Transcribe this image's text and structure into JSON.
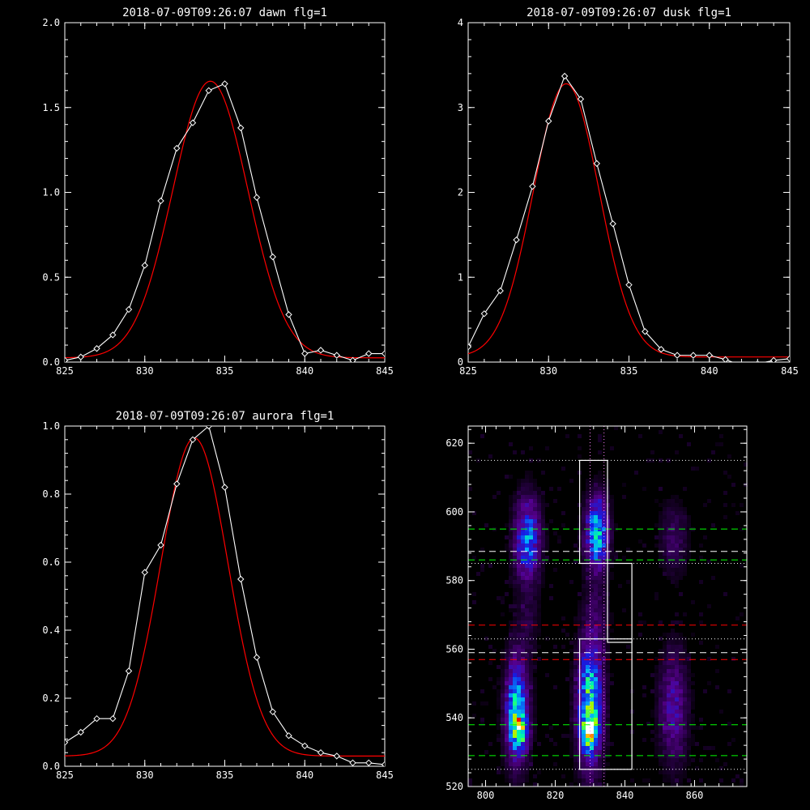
{
  "chart_data": [
    {
      "type": "line",
      "title": "2018-07-09T09:26:07 dawn flg=1",
      "xlim": [
        825,
        845
      ],
      "ylim": [
        0,
        2.0
      ],
      "xticks": [
        825,
        830,
        835,
        840,
        845
      ],
      "yticks": [
        0.0,
        0.5,
        1.0,
        1.5,
        2.0
      ],
      "ytick_labels": [
        "0.0",
        "0.5",
        "1.0",
        "1.5",
        "2.0"
      ],
      "series": [
        {
          "role": "data",
          "color": "#ffffff",
          "markers": "diamond",
          "x": [
            825,
            826,
            827,
            828,
            829,
            830,
            831,
            832,
            833,
            834,
            835,
            836,
            837,
            838,
            839,
            840,
            841,
            842,
            843,
            844,
            845
          ],
          "y": [
            0.01,
            0.03,
            0.08,
            0.16,
            0.31,
            0.57,
            0.95,
            1.26,
            1.41,
            1.6,
            1.64,
            1.38,
            0.97,
            0.62,
            0.28,
            0.05,
            0.07,
            0.04,
            0.01,
            0.05,
            0.05
          ]
        },
        {
          "role": "fit",
          "color": "#ff0000",
          "gauss": {
            "a": 1.63,
            "mu": 834.1,
            "sigma": 2.35,
            "c": 0.025
          }
        }
      ]
    },
    {
      "type": "line",
      "title": "2018-07-09T09:26:07 dusk flg=1",
      "xlim": [
        825,
        845
      ],
      "ylim": [
        0,
        4
      ],
      "xticks": [
        825,
        830,
        835,
        840,
        845
      ],
      "yticks": [
        0,
        1,
        2,
        3,
        4
      ],
      "ytick_labels": [
        "0",
        "1",
        "2",
        "3",
        "4"
      ],
      "series": [
        {
          "role": "data",
          "color": "#ffffff",
          "markers": "diamond",
          "x": [
            825,
            826,
            827,
            828,
            829,
            830,
            831,
            832,
            833,
            834,
            835,
            836,
            837,
            838,
            839,
            840,
            841,
            842,
            843,
            844,
            845
          ],
          "y": [
            0.18,
            0.57,
            0.84,
            1.44,
            2.07,
            2.84,
            3.37,
            3.1,
            2.34,
            1.63,
            0.91,
            0.36,
            0.15,
            0.08,
            0.08,
            0.08,
            0.03,
            -0.04,
            -0.02,
            0.02,
            0.04
          ]
        },
        {
          "role": "fit",
          "color": "#ff0000",
          "gauss": {
            "a": 3.22,
            "mu": 831.1,
            "sigma": 2.05,
            "c": 0.06
          }
        }
      ]
    },
    {
      "type": "line",
      "title": "2018-07-09T09:26:07 aurora flg=1",
      "xlim": [
        825,
        845
      ],
      "ylim": [
        0,
        1.0
      ],
      "xticks": [
        825,
        830,
        835,
        840,
        845
      ],
      "yticks": [
        0.0,
        0.2,
        0.4,
        0.6,
        0.8,
        1.0
      ],
      "ytick_labels": [
        "0.0",
        "0.2",
        "0.4",
        "0.6",
        "0.8",
        "1.0"
      ],
      "series": [
        {
          "role": "data",
          "color": "#ffffff",
          "markers": "diamond",
          "x": [
            825,
            826,
            827,
            828,
            829,
            830,
            831,
            832,
            833,
            834,
            835,
            836,
            837,
            838,
            839,
            840,
            841,
            842,
            843,
            844,
            845
          ],
          "y": [
            0.07,
            0.1,
            0.14,
            0.14,
            0.28,
            0.57,
            0.65,
            0.83,
            0.96,
            1.0,
            0.82,
            0.55,
            0.32,
            0.16,
            0.09,
            0.06,
            0.04,
            0.03,
            0.01,
            0.01,
            0.005
          ]
        },
        {
          "role": "fit",
          "color": "#ff0000",
          "gauss": {
            "a": 0.935,
            "mu": 833.1,
            "sigma": 2.1,
            "c": 0.03
          }
        }
      ]
    },
    {
      "type": "heatmap",
      "xlim": [
        795,
        875
      ],
      "ylim": [
        520,
        625
      ],
      "xticks": [
        800,
        820,
        840,
        860
      ],
      "yticks": [
        520,
        540,
        560,
        580,
        600,
        620
      ],
      "blobs": [
        {
          "x": 812,
          "y": 592,
          "sx": 2.5,
          "sy": 8,
          "amp": 0.45
        },
        {
          "x": 809,
          "y": 542,
          "sx": 2.2,
          "sy": 10,
          "amp": 0.58
        },
        {
          "x": 810,
          "y": 536,
          "sx": 1.6,
          "sy": 3.5,
          "amp": 0.32
        },
        {
          "x": 832,
          "y": 594,
          "sx": 2.2,
          "sy": 7,
          "amp": 0.55
        },
        {
          "x": 830,
          "y": 544,
          "sx": 2.4,
          "sy": 12,
          "amp": 0.62
        },
        {
          "x": 830,
          "y": 536,
          "sx": 1.5,
          "sy": 3,
          "amp": 0.5
        },
        {
          "x": 830,
          "y": 537,
          "sx": 0.7,
          "sy": 1.2,
          "amp": 0.3
        },
        {
          "x": 854,
          "y": 543,
          "sx": 2.8,
          "sy": 11,
          "amp": 0.25
        },
        {
          "x": 854,
          "y": 592,
          "sx": 2.8,
          "sy": 7,
          "amp": 0.14
        },
        {
          "x": 812,
          "y": 568,
          "sx": 2.5,
          "sy": 7,
          "amp": 0.08
        },
        {
          "x": 832,
          "y": 570,
          "sx": 2.5,
          "sy": 8,
          "amp": 0.1
        }
      ],
      "rects": [
        {
          "x0": 827,
          "x1": 835,
          "y0": 585,
          "y1": 615
        },
        {
          "x0": 827,
          "x1": 842,
          "y0": 525,
          "y1": 563
        },
        {
          "x0": 835,
          "x1": 842,
          "y0": 562,
          "y1": 585
        }
      ],
      "vlines_dotted": [
        830,
        834
      ],
      "hlines": [
        {
          "y": 615,
          "color": "#ffffff",
          "style": "dotted"
        },
        {
          "y": 595,
          "color": "#00ff00",
          "style": "dashed"
        },
        {
          "y": 588.5,
          "color": "#ffffff",
          "style": "dashed"
        },
        {
          "y": 586,
          "color": "#00ff00",
          "style": "dashed"
        },
        {
          "y": 585,
          "color": "#ffffff",
          "style": "dotted"
        },
        {
          "y": 567,
          "color": "#ff0000",
          "style": "dashed"
        },
        {
          "y": 563,
          "color": "#ffffff",
          "style": "dotted"
        },
        {
          "y": 559,
          "color": "#ffffff",
          "style": "dashed"
        },
        {
          "y": 557,
          "color": "#ff0000",
          "style": "dashed"
        },
        {
          "y": 538,
          "color": "#00ff00",
          "style": "dashed"
        },
        {
          "y": 529,
          "color": "#00ff00",
          "style": "dashed"
        },
        {
          "y": 525,
          "color": "#ffffff",
          "style": "dotted"
        }
      ]
    }
  ]
}
